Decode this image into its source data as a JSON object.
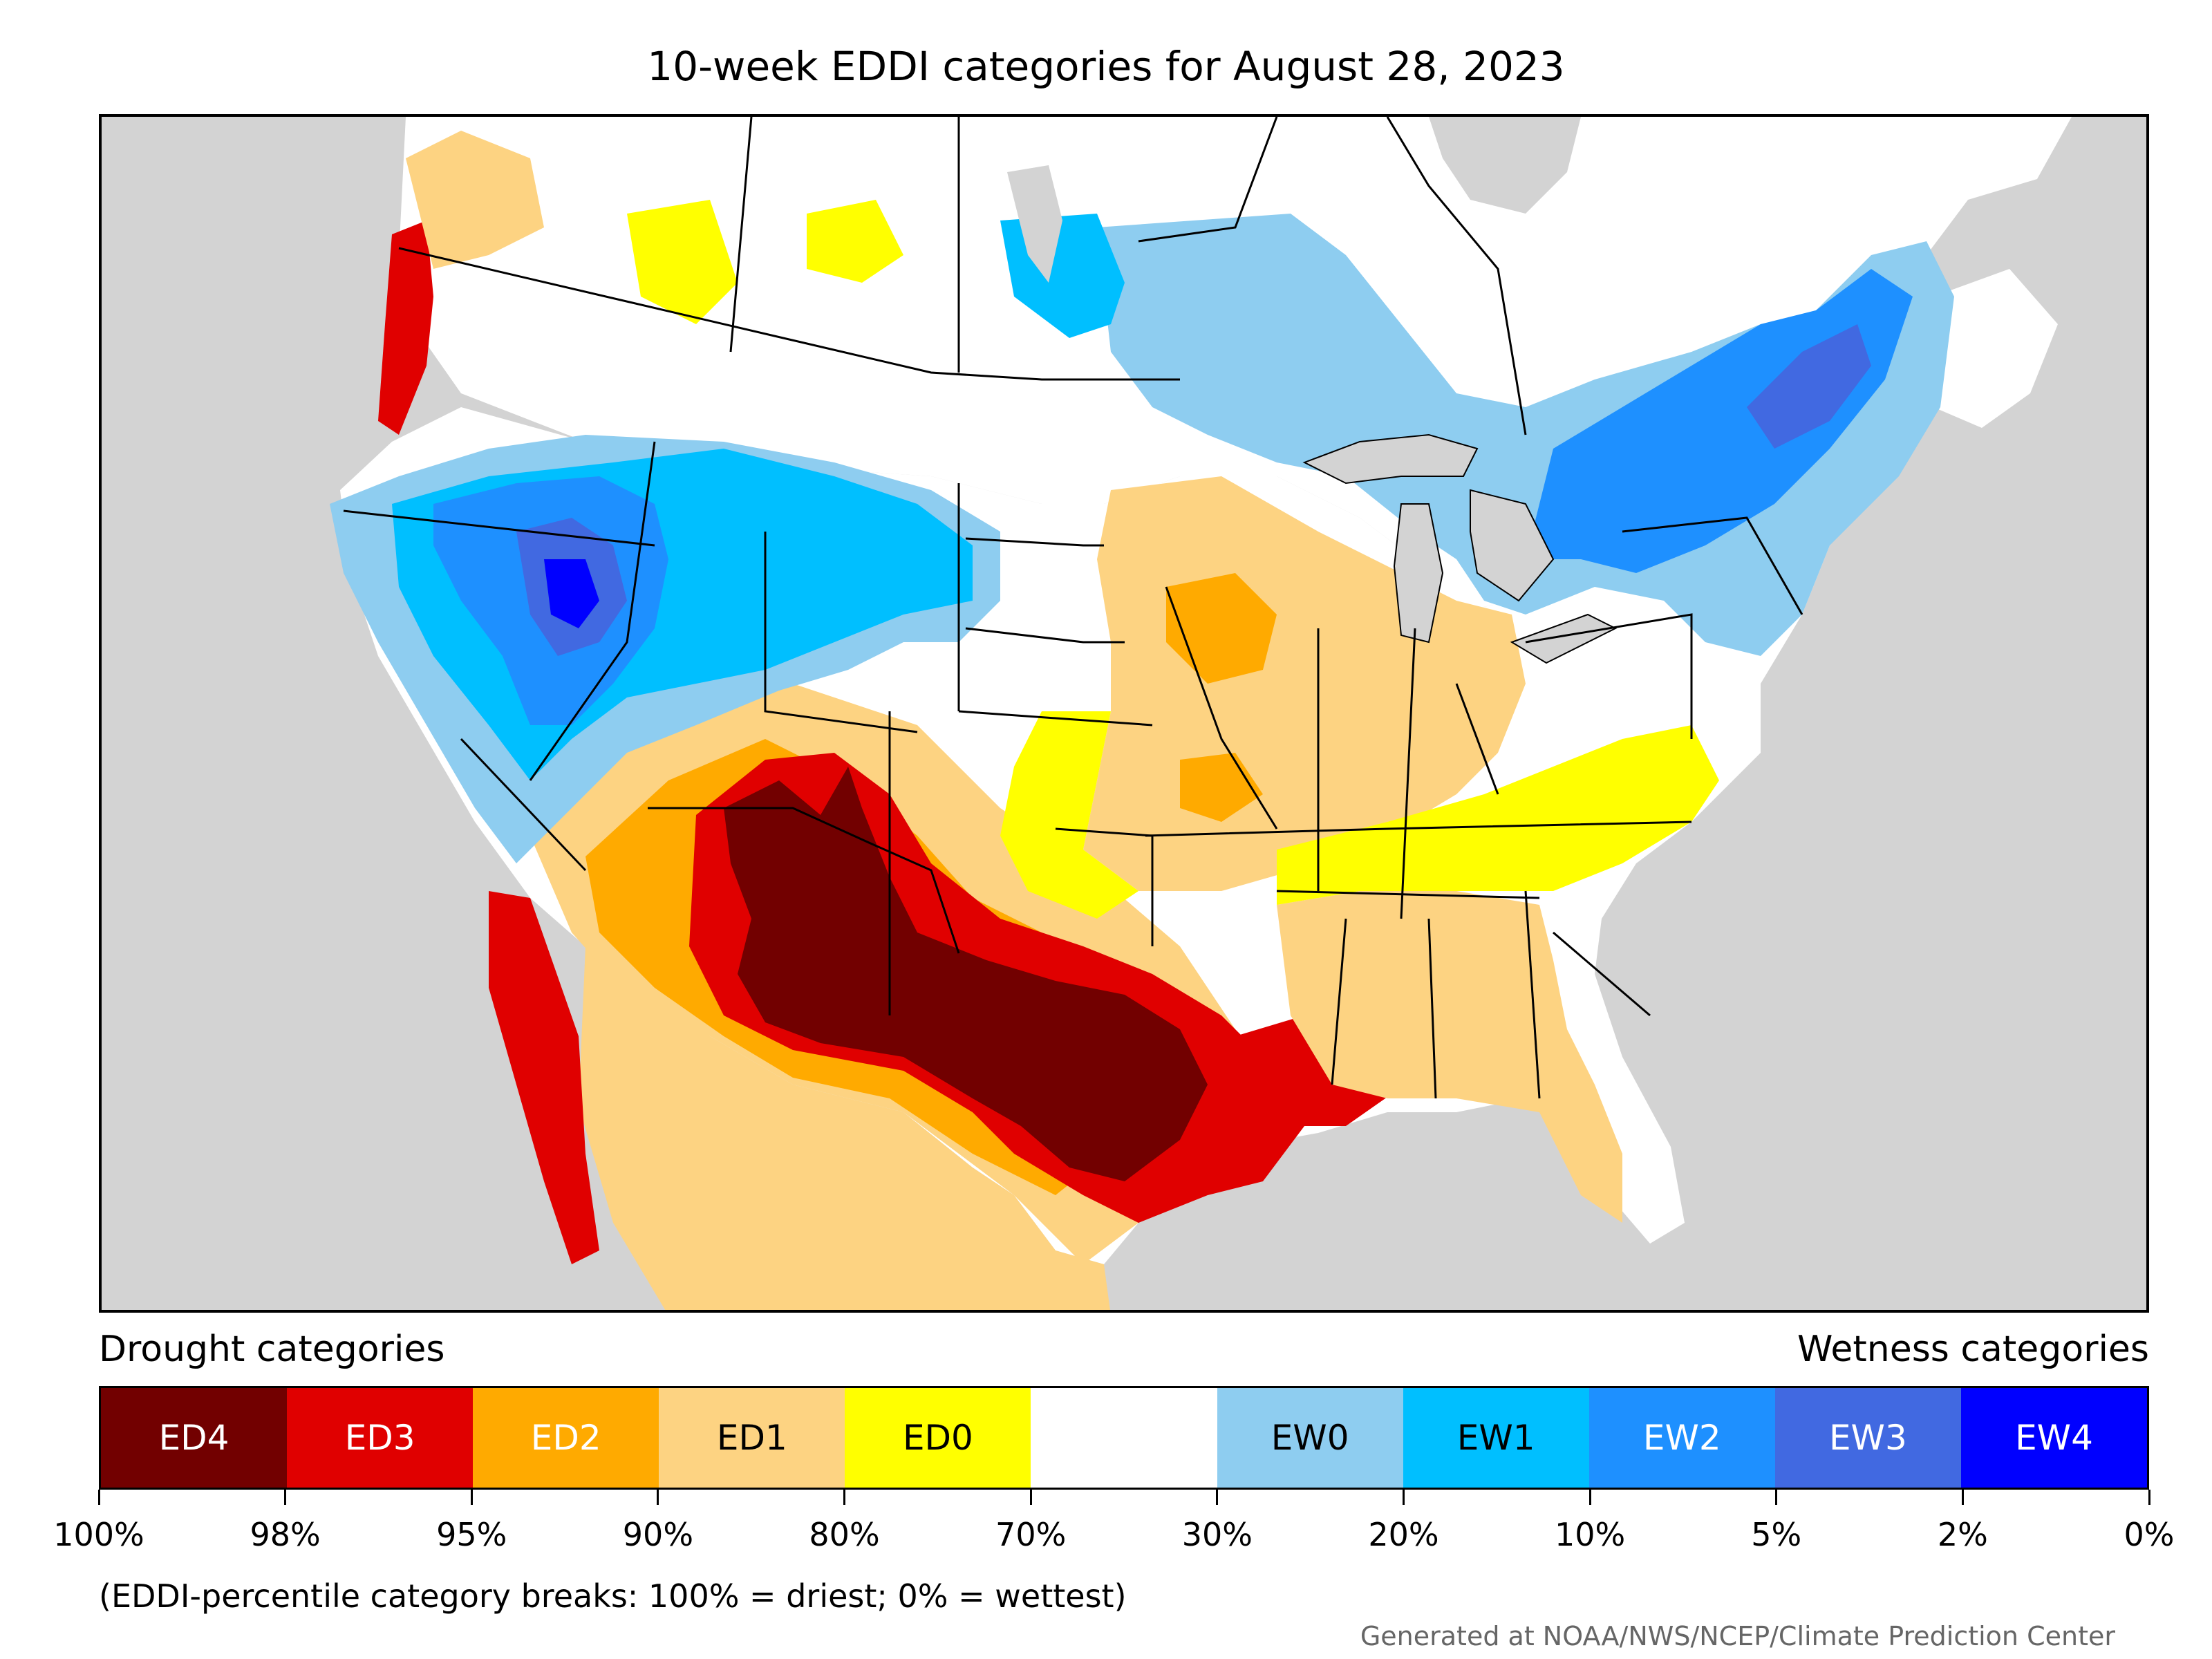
{
  "title": "10-week EDDI categories for August 28, 2023",
  "legend": {
    "drought_heading": "Drought categories",
    "wetness_heading": "Wetness categories",
    "categories": [
      {
        "label": "ED4",
        "color": "#720000",
        "text_color": "#ffffff"
      },
      {
        "label": "ED3",
        "color": "#e00000",
        "text_color": "#ffffff"
      },
      {
        "label": "ED2",
        "color": "#ffaa00",
        "text_color": "#ffffff"
      },
      {
        "label": "ED1",
        "color": "#fdd382",
        "text_color": "#000000"
      },
      {
        "label": "ED0",
        "color": "#ffff00",
        "text_color": "#000000"
      },
      {
        "label": "",
        "color": "#ffffff",
        "text_color": "#000000"
      },
      {
        "label": "EW0",
        "color": "#8ecdf0",
        "text_color": "#000000"
      },
      {
        "label": "EW1",
        "color": "#00bfff",
        "text_color": "#000000"
      },
      {
        "label": "EW2",
        "color": "#1e90ff",
        "text_color": "#ffffff"
      },
      {
        "label": "EW3",
        "color": "#4169e1",
        "text_color": "#ffffff"
      },
      {
        "label": "EW4",
        "color": "#0000ff",
        "text_color": "#ffffff"
      }
    ],
    "tick_labels": [
      "100%",
      "98%",
      "95%",
      "90%",
      "80%",
      "70%",
      "30%",
      "20%",
      "10%",
      "5%",
      "2%",
      "0%"
    ]
  },
  "note": "(EDDI-percentile category breaks: 100% = driest; 0% = wettest)",
  "credit": "Generated at NOAA/NWS/NCEP/Climate Prediction Center",
  "map_colors": {
    "ocean": "#d3d3d3",
    "land": "#ffffff",
    "border": "#000000"
  }
}
